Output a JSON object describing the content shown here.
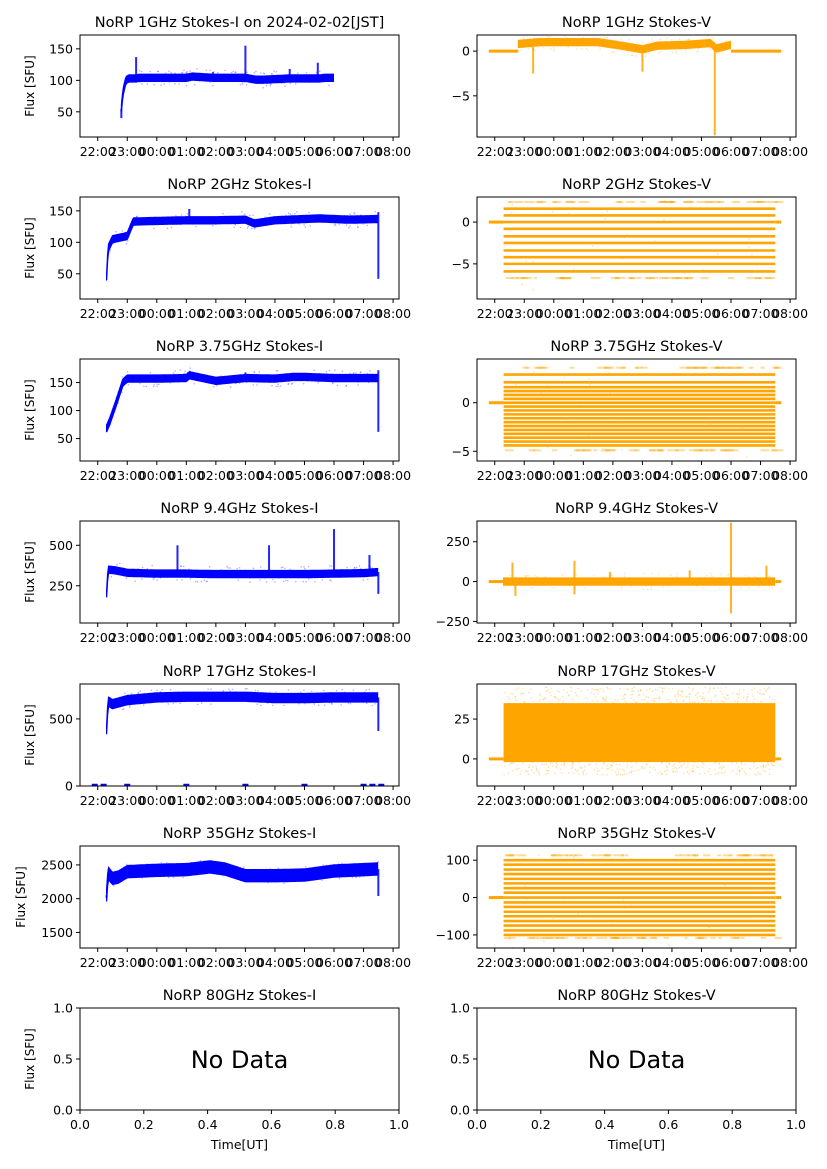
{
  "figure": {
    "date_label": "2024-02-02[JST]",
    "x_label": "Time[UT]",
    "y_label": "Flux [SFU]",
    "colors": {
      "stokes_i": "#0000ff",
      "stokes_v": "#ffa500",
      "axis": "#000000"
    },
    "no_data_text": "No Data"
  },
  "chart_data": [
    {
      "id": "1ghz-i",
      "type": "scatter",
      "title": "NoRP 1GHz Stokes-I on 2024-02-02[JST]",
      "ylabel": "Flux [SFU]",
      "color": "#0000ff",
      "ylim": [
        10,
        172
      ],
      "yticks": [
        50,
        100,
        150
      ],
      "xlim": [
        21.4,
        32.2
      ],
      "xticks": [
        "22:00",
        "23:00",
        "00:00",
        "01:00",
        "02:00",
        "03:00",
        "04:00",
        "05:00",
        "06:00",
        "07:00",
        "08:00"
      ],
      "series": [
        {
          "name": "Stokes-I",
          "band": true,
          "x": [
            22.8,
            22.85,
            22.95,
            23.05,
            23.3,
            23.4,
            24.0,
            25.0,
            25.2,
            25.9,
            27.0,
            27.35,
            27.6,
            28.5,
            29.5,
            29.7,
            30.0
          ],
          "y": [
            55,
            80,
            100,
            103,
            103,
            104,
            104,
            104,
            106,
            104,
            104,
            101,
            101,
            103,
            103,
            104,
            104
          ],
          "spikes": [
            [
              23.3,
              137
            ],
            [
              25.15,
              111
            ],
            [
              25.9,
              113
            ],
            [
              27.0,
              155
            ],
            [
              28.5,
              118
            ],
            [
              29.45,
              128
            ],
            [
              22.8,
              40
            ]
          ],
          "end": 30.0
        }
      ]
    },
    {
      "id": "1ghz-v",
      "type": "scatter",
      "title": "NoRP 1GHz Stokes-V",
      "ylabel": "",
      "color": "#ffa500",
      "ylim": [
        -9.6,
        1.8
      ],
      "yticks": [
        0,
        -5
      ],
      "xlim": [
        21.4,
        32.2
      ],
      "xticks": [
        "22:00",
        "23:00",
        "00:00",
        "01:00",
        "02:00",
        "03:00",
        "04:00",
        "05:00",
        "06:00",
        "07:00",
        "08:00"
      ],
      "series": [
        {
          "name": "Stokes-V",
          "band": true,
          "x": [
            22.8,
            23.5,
            24.5,
            25.5,
            26.3,
            27.0,
            27.5,
            28.5,
            29.3,
            29.5,
            30.0
          ],
          "y": [
            0.8,
            1.0,
            1.0,
            1.0,
            0.6,
            0.2,
            0.6,
            0.7,
            0.9,
            0.3,
            0.7
          ],
          "baseline": [
            [
              21.8,
              22.8
            ],
            [
              30.0,
              31.7
            ]
          ],
          "spikes": [
            [
              23.3,
              -2.5
            ],
            [
              27.0,
              -2.3
            ],
            [
              29.45,
              -9.4
            ]
          ],
          "end": 30.0
        }
      ]
    },
    {
      "id": "2ghz-i",
      "type": "scatter",
      "title": "NoRP 2GHz Stokes-I",
      "ylabel": "Flux [SFU]",
      "color": "#0000ff",
      "ylim": [
        10,
        172
      ],
      "yticks": [
        50,
        100,
        150
      ],
      "xlim": [
        21.4,
        32.2
      ],
      "xticks": [
        "22:00",
        "23:00",
        "00:00",
        "01:00",
        "02:00",
        "03:00",
        "04:00",
        "05:00",
        "06:00",
        "07:00",
        "08:00"
      ],
      "series": [
        {
          "name": "Stokes-I",
          "band": true,
          "x": [
            22.3,
            22.35,
            22.5,
            22.7,
            23.0,
            23.2,
            24.0,
            25.0,
            26.0,
            27.0,
            27.3,
            28.0,
            29.0,
            29.5,
            30.5,
            31.5
          ],
          "y": [
            45,
            90,
            105,
            107,
            110,
            133,
            134,
            135,
            135,
            136,
            130,
            135,
            137,
            138,
            136,
            137
          ],
          "spikes": [
            [
              25.1,
              153
            ],
            [
              27.0,
              142
            ],
            [
              31.5,
              148
            ],
            [
              31.5,
              42
            ]
          ],
          "end": 31.5
        }
      ]
    },
    {
      "id": "2ghz-v",
      "type": "scatter",
      "title": "NoRP 2GHz Stokes-V",
      "ylabel": "",
      "color": "#ffa500",
      "ylim": [
        -9.2,
        3.0
      ],
      "yticks": [
        0,
        -5
      ],
      "xlim": [
        21.4,
        32.2
      ],
      "xticks": [
        "22:00",
        "23:00",
        "00:00",
        "01:00",
        "02:00",
        "03:00",
        "04:00",
        "05:00",
        "06:00",
        "07:00",
        "08:00"
      ],
      "series": [
        {
          "name": "Stokes-V",
          "levels": [
            2.4,
            1.6,
            0.8,
            0,
            -0.8,
            -1.7,
            -2.5,
            -3.4,
            -4.2,
            -5.0,
            -5.9,
            -6.7
          ],
          "x_range": [
            22.3,
            31.5
          ],
          "baseline": [
            [
              21.8,
              22.3
            ],
            [
              31.5,
              31.7
            ]
          ]
        }
      ]
    },
    {
      "id": "375ghz-i",
      "type": "scatter",
      "title": "NoRP 3.75GHz Stokes-I",
      "ylabel": "Flux [SFU]",
      "color": "#0000ff",
      "ylim": [
        10,
        192
      ],
      "yticks": [
        50,
        100,
        150
      ],
      "xlim": [
        21.4,
        32.2
      ],
      "xticks": [
        "22:00",
        "23:00",
        "00:00",
        "01:00",
        "02:00",
        "03:00",
        "04:00",
        "05:00",
        "06:00",
        "07:00",
        "08:00"
      ],
      "series": [
        {
          "name": "Stokes-I",
          "band": true,
          "x": [
            22.3,
            22.4,
            22.6,
            22.85,
            23.0,
            24.0,
            25.0,
            25.1,
            26.0,
            27.0,
            28.0,
            28.6,
            29.0,
            30.0,
            31.5
          ],
          "y": [
            68,
            80,
            110,
            150,
            157,
            157,
            158,
            163,
            153,
            158,
            157,
            160,
            160,
            158,
            158
          ],
          "spikes": [
            [
              25.1,
              167
            ],
            [
              27.0,
              168
            ],
            [
              31.5,
              172
            ],
            [
              31.5,
              62
            ]
          ],
          "end": 31.5
        }
      ]
    },
    {
      "id": "375ghz-v",
      "type": "scatter",
      "title": "NoRP 3.75GHz Stokes-V",
      "ylabel": "",
      "color": "#ffa500",
      "ylim": [
        -6.0,
        4.5
      ],
      "yticks": [
        0,
        -5
      ],
      "xlim": [
        21.4,
        32.2
      ],
      "xticks": [
        "22:00",
        "23:00",
        "00:00",
        "01:00",
        "02:00",
        "03:00",
        "04:00",
        "05:00",
        "06:00",
        "07:00",
        "08:00"
      ],
      "series": [
        {
          "name": "Stokes-V",
          "levels": [
            3.6,
            2.9,
            2.1,
            1.6,
            1.2,
            0.8,
            0.4,
            0,
            -0.4,
            -0.8,
            -1.2,
            -1.6,
            -2.0,
            -2.4,
            -2.8,
            -3.2,
            -3.6,
            -4.0,
            -4.4,
            -4.9
          ],
          "x_range": [
            22.3,
            31.5
          ],
          "baseline": [
            [
              21.8,
              22.3
            ],
            [
              31.5,
              31.7
            ]
          ]
        }
      ]
    },
    {
      "id": "94ghz-i",
      "type": "scatter",
      "title": "NoRP 9.4GHz Stokes-I",
      "ylabel": "Flux [SFU]",
      "color": "#0000ff",
      "ylim": [
        20,
        650
      ],
      "yticks": [
        250,
        500
      ],
      "xlim": [
        21.4,
        32.2
      ],
      "xticks": [
        "22:00",
        "23:00",
        "00:00",
        "01:00",
        "02:00",
        "03:00",
        "04:00",
        "05:00",
        "06:00",
        "07:00",
        "08:00"
      ],
      "series": [
        {
          "name": "Stokes-I",
          "band": true,
          "x": [
            22.3,
            22.35,
            22.6,
            23.0,
            24.0,
            25.0,
            26.0,
            27.0,
            28.0,
            29.0,
            30.0,
            31.0,
            31.5
          ],
          "y": [
            200,
            350,
            345,
            330,
            325,
            325,
            322,
            322,
            322,
            322,
            325,
            328,
            335
          ],
          "spikes": [
            [
              30.0,
              600
            ],
            [
              24.7,
              500
            ],
            [
              27.8,
              500
            ],
            [
              31.2,
              440
            ],
            [
              31.5,
              200
            ]
          ],
          "end": 31.5
        }
      ]
    },
    {
      "id": "94ghz-v",
      "type": "scatter",
      "title": "NoRP 9.4GHz Stokes-V",
      "ylabel": "",
      "color": "#ffa500",
      "ylim": [
        -260,
        380
      ],
      "yticks": [
        250,
        0,
        -250
      ],
      "xlim": [
        21.4,
        32.2
      ],
      "xticks": [
        "22:00",
        "23:00",
        "00:00",
        "01:00",
        "02:00",
        "03:00",
        "04:00",
        "05:00",
        "06:00",
        "07:00",
        "08:00"
      ],
      "series": [
        {
          "name": "Stokes-V",
          "band": true,
          "x": [
            22.3,
            31.5
          ],
          "y": [
            0,
            0
          ],
          "baseline": [
            [
              21.8,
              22.3
            ],
            [
              31.5,
              31.7
            ]
          ],
          "spikes": [
            [
              22.6,
              120
            ],
            [
              22.7,
              -90
            ],
            [
              24.7,
              130
            ],
            [
              24.7,
              -80
            ],
            [
              25.9,
              60
            ],
            [
              28.6,
              70
            ],
            [
              30.0,
              370
            ],
            [
              30.0,
              -200
            ],
            [
              31.2,
              100
            ]
          ],
          "end": 31.5
        }
      ]
    },
    {
      "id": "17ghz-i",
      "type": "scatter",
      "title": "NoRP 17GHz Stokes-I",
      "ylabel": "Flux [SFU]",
      "color": "#0000ff",
      "ylim": [
        0,
        760
      ],
      "yticks": [
        0,
        500
      ],
      "xlim": [
        21.4,
        32.2
      ],
      "xticks": [
        "22:00",
        "23:00",
        "00:00",
        "01:00",
        "02:00",
        "03:00",
        "04:00",
        "05:00",
        "06:00",
        "07:00",
        "08:00"
      ],
      "series": [
        {
          "name": "Stokes-I",
          "band": true,
          "x": [
            22.3,
            22.35,
            22.5,
            23.0,
            24.0,
            25.0,
            26.0,
            27.0,
            28.0,
            29.0,
            30.0,
            31.5
          ],
          "y": [
            420,
            630,
            610,
            640,
            660,
            665,
            665,
            665,
            655,
            655,
            660,
            660
          ],
          "spikes": [
            [
              31.5,
              410
            ]
          ],
          "zero_marks": [
            21.9,
            22.2,
            23.0,
            25.0,
            27.0,
            29.0,
            31.0,
            31.3,
            31.6
          ],
          "end": 31.5
        }
      ]
    },
    {
      "id": "17ghz-v",
      "type": "scatter",
      "title": "NoRP 17GHz Stokes-V",
      "ylabel": "",
      "color": "#ffa500",
      "ylim": [
        -17,
        47
      ],
      "yticks": [
        25,
        0
      ],
      "xlim": [
        21.4,
        32.2
      ],
      "xticks": [
        "22:00",
        "23:00",
        "00:00",
        "01:00",
        "02:00",
        "03:00",
        "04:00",
        "05:00",
        "06:00",
        "07:00",
        "08:00"
      ],
      "series": [
        {
          "name": "Stokes-V",
          "fill_range": [
            -2,
            35
          ],
          "scatter_range": [
            -10,
            45
          ],
          "x_range": [
            22.3,
            31.5
          ],
          "baseline": [
            [
              21.8,
              22.3
            ],
            [
              31.5,
              31.7
            ]
          ]
        }
      ]
    },
    {
      "id": "35ghz-i",
      "type": "scatter",
      "title": "NoRP 35GHz Stokes-I",
      "ylabel": "Flux [SFU]",
      "color": "#0000ff",
      "ylim": [
        1270,
        2780
      ],
      "yticks": [
        1500,
        2000,
        2500
      ],
      "xlim": [
        21.4,
        32.2
      ],
      "xticks": [
        "22:00",
        "23:00",
        "00:00",
        "01:00",
        "02:00",
        "03:00",
        "04:00",
        "05:00",
        "06:00",
        "07:00",
        "08:00"
      ],
      "series": [
        {
          "name": "Stokes-I",
          "band": true,
          "x": [
            22.3,
            22.35,
            22.5,
            22.7,
            23.0,
            24.0,
            25.0,
            25.8,
            26.3,
            27.0,
            28.0,
            29.0,
            30.0,
            31.5
          ],
          "y": [
            2050,
            2380,
            2300,
            2320,
            2400,
            2420,
            2430,
            2470,
            2440,
            2340,
            2340,
            2350,
            2410,
            2440
          ],
          "spikes": [
            [
              31.5,
              2040
            ],
            [
              22.3,
              2010
            ]
          ],
          "end": 31.5
        }
      ]
    },
    {
      "id": "35ghz-v",
      "type": "scatter",
      "title": "NoRP 35GHz Stokes-V",
      "ylabel": "",
      "color": "#ffa500",
      "ylim": [
        -135,
        138
      ],
      "yticks": [
        100,
        0,
        -100
      ],
      "xlim": [
        21.4,
        32.2
      ],
      "xticks": [
        "22:00",
        "23:00",
        "00:00",
        "01:00",
        "02:00",
        "03:00",
        "04:00",
        "05:00",
        "06:00",
        "07:00",
        "08:00"
      ],
      "series": [
        {
          "name": "Stokes-V",
          "levels": [
            113,
            100,
            88,
            75,
            63,
            50,
            38,
            25,
            13,
            0,
            -13,
            -25,
            -38,
            -50,
            -63,
            -75,
            -88,
            -100,
            -108
          ],
          "x_range": [
            22.3,
            31.5
          ],
          "baseline": [
            [
              21.8,
              22.3
            ],
            [
              31.5,
              31.7
            ]
          ]
        }
      ]
    },
    {
      "id": "80ghz-i",
      "type": "empty",
      "title": "NoRP 80GHz Stokes-I",
      "ylabel": "Flux [SFU]",
      "xlabel": "Time[UT]",
      "annotation": "No Data",
      "xlim": [
        0,
        1
      ],
      "ylim": [
        0,
        1
      ],
      "xticks": [
        "0.0",
        "0.2",
        "0.4",
        "0.6",
        "0.8",
        "1.0"
      ],
      "yticks": [
        "0.0",
        "0.5",
        "1.0"
      ]
    },
    {
      "id": "80ghz-v",
      "type": "empty",
      "title": "NoRP 80GHz Stokes-V",
      "ylabel": "",
      "xlabel": "Time[UT]",
      "annotation": "No Data",
      "xlim": [
        0,
        1
      ],
      "ylim": [
        0,
        1
      ],
      "xticks": [
        "0.0",
        "0.2",
        "0.4",
        "0.6",
        "0.8",
        "1.0"
      ],
      "yticks": [
        "0.0",
        "0.5",
        "1.0"
      ]
    }
  ]
}
